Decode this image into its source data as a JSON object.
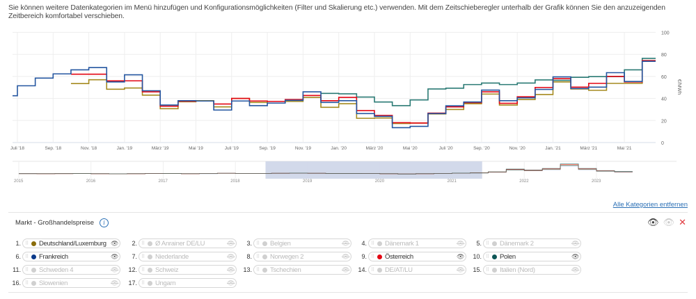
{
  "intro_text": "Sie können weitere Datenkategorien im Menü hinzufügen und Konfigurationsmöglichkeiten (Filter und Skalierung etc.) verwenden. Mit dem Zeitschieberegler unterhalb der Grafik können Sie den anzuzeigenden Zeitbereich komfortabel verschieben.",
  "remove_all_label": "Alle Kategorien entfernen",
  "section_title": "Markt - Großhandelspreise",
  "icons": {
    "info": "info-icon",
    "show_all": "eye-icon",
    "hide_all": "eye-off-icon",
    "remove": "close-icon"
  },
  "chart_data": {
    "type": "line",
    "step": true,
    "ylabel": "€/MWh",
    "ylim": [
      0,
      100
    ],
    "yticks": [
      0,
      20,
      40,
      60,
      80,
      100
    ],
    "grid": true,
    "months": [
      "2018-06",
      "2018-07",
      "2018-08",
      "2018-09",
      "2018-10",
      "2018-11",
      "2018-12",
      "2019-01",
      "2019-02",
      "2019-03",
      "2019-04",
      "2019-05",
      "2019-06",
      "2019-07",
      "2019-08",
      "2019-09",
      "2019-10",
      "2019-11",
      "2019-12",
      "2020-01",
      "2020-02",
      "2020-03",
      "2020-04",
      "2020-05",
      "2020-06",
      "2020-07",
      "2020-08",
      "2020-09",
      "2020-10",
      "2020-11",
      "2020-12",
      "2021-01",
      "2021-02",
      "2021-03",
      "2021-04",
      "2021-05",
      "2021-06"
    ],
    "xticks": [
      {
        "month": "2018-07",
        "label": "Juli '18"
      },
      {
        "month": "2018-09",
        "label": "Sep. '18"
      },
      {
        "month": "2018-11",
        "label": "Nov. '18"
      },
      {
        "month": "2019-01",
        "label": "Jan. '19"
      },
      {
        "month": "2019-03",
        "label": "März '19"
      },
      {
        "month": "2019-05",
        "label": "Mai '19"
      },
      {
        "month": "2019-07",
        "label": "Juli '19"
      },
      {
        "month": "2019-09",
        "label": "Sep. '19"
      },
      {
        "month": "2019-11",
        "label": "Nov. '19"
      },
      {
        "month": "2020-01",
        "label": "Jan. '20"
      },
      {
        "month": "2020-03",
        "label": "März '20"
      },
      {
        "month": "2020-05",
        "label": "Mai '20"
      },
      {
        "month": "2020-07",
        "label": "Juli '20"
      },
      {
        "month": "2020-09",
        "label": "Sep. '20"
      },
      {
        "month": "2020-11",
        "label": "Nov. '20"
      },
      {
        "month": "2021-01",
        "label": "Jan. '21"
      },
      {
        "month": "2021-03",
        "label": "März '21"
      },
      {
        "month": "2021-05",
        "label": "Mai '21"
      }
    ],
    "series": [
      {
        "name": "Polen",
        "color": "#2a7a74",
        "values": [
          null,
          null,
          null,
          null,
          null,
          null,
          null,
          null,
          null,
          null,
          null,
          null,
          null,
          null,
          null,
          null,
          null,
          null,
          44.6,
          44.2,
          41.3,
          36.8,
          33.5,
          38.7,
          48.6,
          49.3,
          52.6,
          54,
          52.6,
          54,
          56.8,
          56.4,
          59.2,
          59.8,
          59.8,
          66,
          76.4
        ]
      },
      {
        "name": "Deutschland/Luxemburg",
        "color": "#a58a1f",
        "values": [
          null,
          null,
          null,
          null,
          53.5,
          57,
          48.4,
          49.5,
          43,
          30.7,
          37,
          38,
          32.4,
          40,
          36.4,
          35.8,
          37.3,
          41,
          32,
          35.2,
          22,
          22.3,
          17.3,
          17.7,
          26,
          30,
          35.2,
          44,
          34,
          39,
          43.6,
          55,
          48.6,
          47.4,
          53.7,
          53.7,
          74.3
        ]
      },
      {
        "name": "Österreich",
        "color": "#e30613",
        "values": [
          null,
          null,
          null,
          null,
          62,
          62,
          56,
          56,
          46,
          33,
          37.5,
          37.7,
          35,
          40,
          37.7,
          37.3,
          39,
          42.7,
          38,
          41,
          29,
          24.6,
          18,
          17.7,
          26.7,
          32.4,
          36.2,
          46,
          35.6,
          41.5,
          50,
          58,
          50.3,
          53.7,
          60,
          55,
          74.3
        ]
      },
      {
        "name": "Frankreich",
        "color": "#2456a0",
        "values": [
          42.5,
          51.5,
          58.5,
          62.3,
          66,
          68,
          55,
          61.5,
          47,
          34,
          38,
          37.7,
          29.5,
          37.7,
          33.5,
          35.8,
          38.3,
          46,
          36.4,
          38,
          26.3,
          23.8,
          13.5,
          14.7,
          26.3,
          33.3,
          36.8,
          47.6,
          38,
          40.6,
          48.2,
          59.6,
          49,
          50.3,
          63.4,
          55.4,
          73.7
        ]
      }
    ],
    "navigator": {
      "year_labels": [
        "2015",
        "2016",
        "2017",
        "2018",
        "2019",
        "2020",
        "2021",
        "2022",
        "2023"
      ],
      "selected_range": [
        "2018-06",
        "2021-06"
      ],
      "quarterly_values": [
        32,
        30,
        33,
        38,
        30,
        26,
        30,
        37,
        38,
        30,
        34,
        45,
        40,
        40,
        45,
        50,
        45,
        38,
        38,
        40,
        30,
        20,
        30,
        40,
        50,
        60,
        90,
        180,
        150,
        200,
        350,
        200,
        130,
        100
      ]
    }
  },
  "legend": [
    {
      "n": "1.",
      "label": "Deutschland/Luxemburg",
      "color": "#8a6d0b",
      "active": true
    },
    {
      "n": "2.",
      "label": "Ø Anrainer DE/LU",
      "color": "#d0d0d0",
      "active": false
    },
    {
      "n": "3.",
      "label": "Belgien",
      "color": "#d0d0d0",
      "active": false
    },
    {
      "n": "4.",
      "label": "Dänemark 1",
      "color": "#d0d0d0",
      "active": false
    },
    {
      "n": "5.",
      "label": "Dänemark 2",
      "color": "#d0d0d0",
      "active": false
    },
    {
      "n": "6.",
      "label": "Frankreich",
      "color": "#0b3a8a",
      "active": true
    },
    {
      "n": "7.",
      "label": "Niederlande",
      "color": "#d0d0d0",
      "active": false
    },
    {
      "n": "8.",
      "label": "Norwegen 2",
      "color": "#d0d0d0",
      "active": false
    },
    {
      "n": "9.",
      "label": "Österreich",
      "color": "#e30613",
      "active": true
    },
    {
      "n": "10.",
      "label": "Polen",
      "color": "#0d5656",
      "active": true
    },
    {
      "n": "11.",
      "label": "Schweden 4",
      "color": "#d0d0d0",
      "active": false
    },
    {
      "n": "12.",
      "label": "Schweiz",
      "color": "#d0d0d0",
      "active": false
    },
    {
      "n": "13.",
      "label": "Tschechien",
      "color": "#d0d0d0",
      "active": false
    },
    {
      "n": "14.",
      "label": "DE/AT/LU",
      "color": "#d0d0d0",
      "active": false
    },
    {
      "n": "15.",
      "label": "Italien (Nord)",
      "color": "#d0d0d0",
      "active": false
    },
    {
      "n": "16.",
      "label": "Slowenien",
      "color": "#d0d0d0",
      "active": false
    },
    {
      "n": "17.",
      "label": "Ungarn",
      "color": "#d0d0d0",
      "active": false
    }
  ]
}
